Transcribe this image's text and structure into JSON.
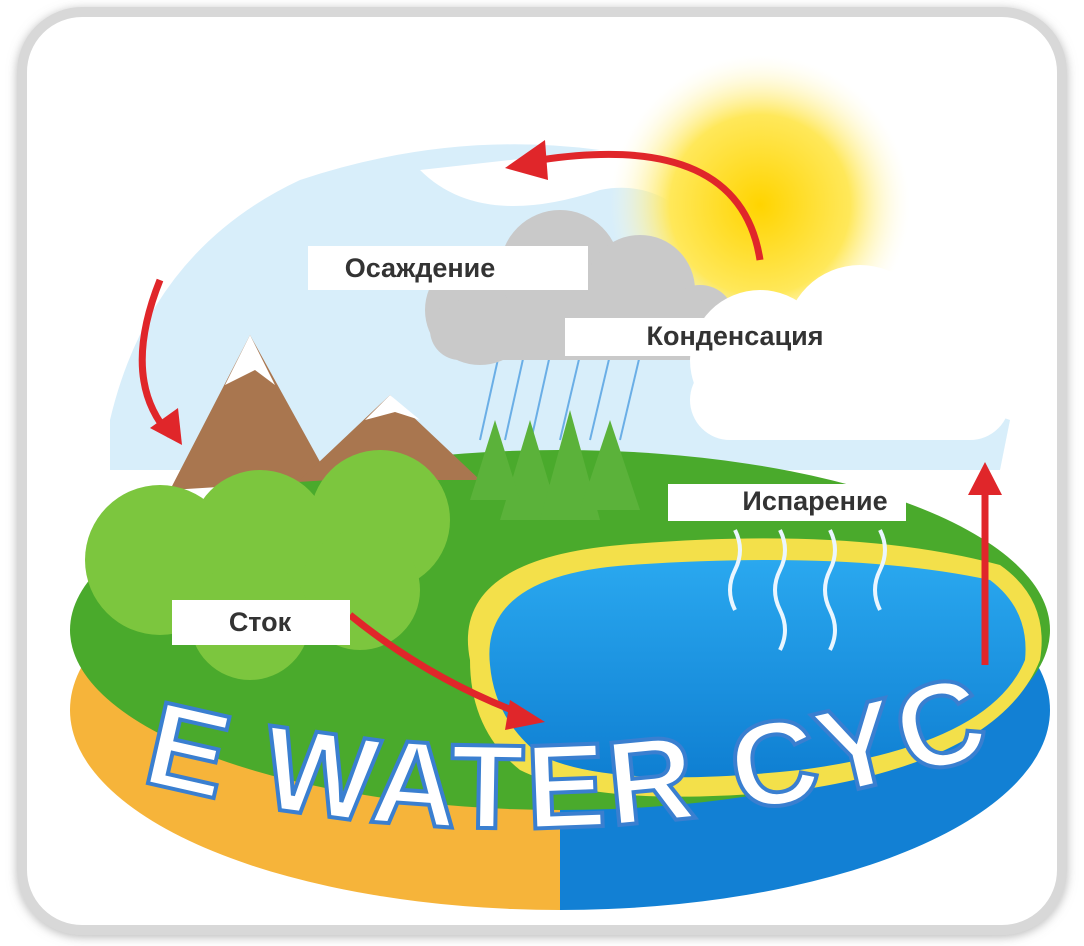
{
  "title": "THE WATER CYCLE",
  "labels": [
    "Осаждение",
    "Конденсация",
    "Испарение",
    "Сток"
  ]
}
